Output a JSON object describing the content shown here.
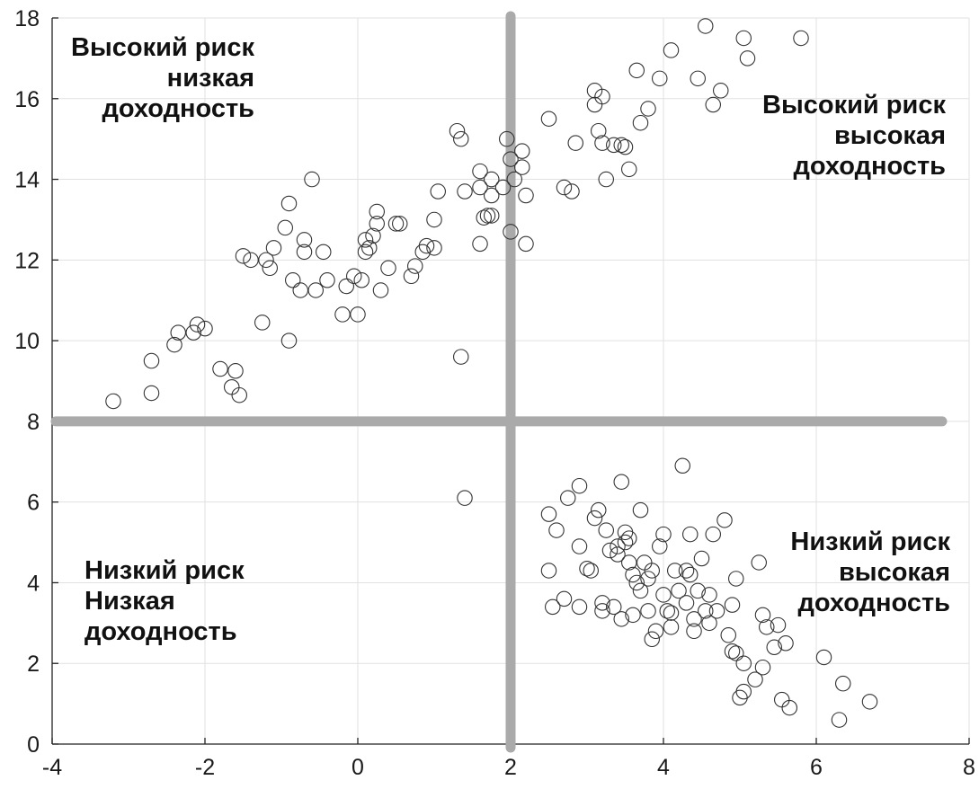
{
  "chart_data": {
    "type": "scatter",
    "title": "",
    "xlabel": "",
    "ylabel": "",
    "xlim": [
      -4,
      8
    ],
    "ylim": [
      0,
      18
    ],
    "x_ticks": [
      "-4",
      "-2",
      "0",
      "2",
      "4",
      "6",
      "8"
    ],
    "y_ticks": [
      "0",
      "2",
      "4",
      "6",
      "8",
      "10",
      "12",
      "14",
      "16",
      "18"
    ],
    "grid": true,
    "marker": "open-circle",
    "divider_x": 2,
    "divider_y": 8,
    "quadrant_labels": [
      {
        "id": "top-left",
        "lines": [
          "Высокий риск",
          "низкая",
          "доходность"
        ],
        "align": "right"
      },
      {
        "id": "top-right",
        "lines": [
          "Высокий риск",
          "высокая",
          "доходность"
        ],
        "align": "right"
      },
      {
        "id": "bottom-left",
        "lines": [
          "Низкий риск",
          "Низкая",
          "доходность"
        ],
        "align": "left"
      },
      {
        "id": "bottom-right",
        "lines": [
          "Низкий риск",
          "высокая",
          "доходность"
        ],
        "align": "right"
      }
    ],
    "series": [
      {
        "points": [
          [
            -3.2,
            8.5
          ],
          [
            -2.7,
            8.7
          ],
          [
            -2.7,
            9.5
          ],
          [
            -2.4,
            9.9
          ],
          [
            -2.35,
            10.2
          ],
          [
            -2.15,
            10.2
          ],
          [
            -2.1,
            10.4
          ],
          [
            -2.0,
            10.3
          ],
          [
            -1.8,
            9.3
          ],
          [
            -1.65,
            8.85
          ],
          [
            -1.6,
            9.25
          ],
          [
            -1.55,
            8.65
          ],
          [
            -1.25,
            10.45
          ],
          [
            -1.5,
            12.1
          ],
          [
            -1.4,
            12.0
          ],
          [
            -1.2,
            12.0
          ],
          [
            -1.15,
            11.8
          ],
          [
            -1.1,
            12.3
          ],
          [
            -0.95,
            12.8
          ],
          [
            -0.9,
            13.4
          ],
          [
            -0.9,
            10.0
          ],
          [
            -0.85,
            11.5
          ],
          [
            -0.75,
            11.25
          ],
          [
            -0.7,
            12.2
          ],
          [
            -0.7,
            12.5
          ],
          [
            -0.6,
            14.0
          ],
          [
            -0.55,
            11.25
          ],
          [
            -0.45,
            12.2
          ],
          [
            -0.4,
            11.5
          ],
          [
            -0.2,
            10.65
          ],
          [
            -0.15,
            11.35
          ],
          [
            -0.05,
            11.6
          ],
          [
            0.0,
            10.65
          ],
          [
            0.05,
            11.5
          ],
          [
            0.1,
            12.2
          ],
          [
            0.1,
            12.5
          ],
          [
            0.15,
            12.3
          ],
          [
            0.2,
            12.6
          ],
          [
            0.25,
            12.9
          ],
          [
            0.25,
            13.2
          ],
          [
            0.3,
            11.25
          ],
          [
            0.4,
            11.8
          ],
          [
            0.5,
            12.9
          ],
          [
            0.55,
            12.9
          ],
          [
            0.7,
            11.6
          ],
          [
            0.75,
            11.85
          ],
          [
            0.85,
            12.2
          ],
          [
            0.9,
            12.35
          ],
          [
            1.0,
            12.3
          ],
          [
            1.0,
            13.0
          ],
          [
            1.05,
            13.7
          ],
          [
            1.3,
            15.2
          ],
          [
            1.35,
            15.0
          ],
          [
            1.4,
            13.7
          ],
          [
            1.35,
            9.6
          ],
          [
            1.6,
            13.8
          ],
          [
            1.6,
            14.2
          ],
          [
            1.6,
            12.4
          ],
          [
            1.65,
            13.05
          ],
          [
            1.7,
            13.1
          ],
          [
            1.75,
            13.6
          ],
          [
            1.75,
            14.0
          ],
          [
            1.75,
            13.1
          ],
          [
            1.9,
            13.8
          ],
          [
            1.95,
            15.0
          ],
          [
            2.0,
            14.5
          ],
          [
            2.0,
            12.7
          ],
          [
            2.05,
            14.0
          ],
          [
            2.15,
            14.3
          ],
          [
            2.15,
            14.7
          ],
          [
            2.2,
            13.6
          ],
          [
            2.2,
            12.4
          ],
          [
            1.4,
            6.1
          ],
          [
            2.5,
            15.5
          ],
          [
            2.7,
            13.8
          ],
          [
            2.8,
            13.7
          ],
          [
            2.85,
            14.9
          ],
          [
            3.1,
            16.2
          ],
          [
            3.1,
            15.85
          ],
          [
            3.15,
            15.2
          ],
          [
            3.2,
            14.9
          ],
          [
            3.2,
            16.05
          ],
          [
            3.25,
            14.0
          ],
          [
            3.35,
            14.85
          ],
          [
            3.45,
            14.85
          ],
          [
            3.5,
            14.8
          ],
          [
            3.55,
            14.25
          ],
          [
            3.65,
            16.7
          ],
          [
            3.7,
            15.4
          ],
          [
            3.8,
            15.75
          ],
          [
            3.95,
            16.5
          ],
          [
            4.1,
            17.2
          ],
          [
            4.45,
            16.5
          ],
          [
            4.55,
            17.8
          ],
          [
            4.65,
            15.85
          ],
          [
            4.75,
            16.2
          ],
          [
            5.05,
            17.5
          ],
          [
            5.1,
            17.0
          ],
          [
            5.8,
            17.5
          ],
          [
            2.5,
            5.7
          ],
          [
            2.5,
            4.3
          ],
          [
            2.55,
            3.4
          ],
          [
            2.6,
            5.3
          ],
          [
            2.7,
            3.6
          ],
          [
            2.75,
            6.1
          ],
          [
            2.9,
            3.4
          ],
          [
            2.9,
            4.9
          ],
          [
            2.9,
            6.4
          ],
          [
            3.0,
            4.35
          ],
          [
            3.05,
            4.3
          ],
          [
            3.1,
            5.6
          ],
          [
            3.15,
            5.8
          ],
          [
            3.2,
            3.5
          ],
          [
            3.2,
            3.3
          ],
          [
            3.25,
            5.3
          ],
          [
            3.3,
            4.8
          ],
          [
            3.35,
            3.4
          ],
          [
            3.4,
            4.7
          ],
          [
            3.4,
            4.9
          ],
          [
            3.45,
            6.5
          ],
          [
            3.5,
            5.0
          ],
          [
            3.5,
            5.25
          ],
          [
            3.55,
            5.1
          ],
          [
            3.55,
            4.5
          ],
          [
            3.45,
            3.1
          ],
          [
            3.6,
            3.2
          ],
          [
            3.6,
            4.2
          ],
          [
            3.65,
            4.0
          ],
          [
            3.7,
            5.8
          ],
          [
            3.7,
            3.8
          ],
          [
            3.75,
            4.5
          ],
          [
            3.8,
            4.1
          ],
          [
            3.8,
            3.3
          ],
          [
            3.85,
            2.6
          ],
          [
            3.85,
            4.3
          ],
          [
            3.9,
            2.8
          ],
          [
            3.95,
            4.9
          ],
          [
            4.0,
            5.2
          ],
          [
            4.0,
            3.7
          ],
          [
            4.05,
            3.3
          ],
          [
            4.1,
            3.25
          ],
          [
            4.1,
            2.9
          ],
          [
            4.15,
            4.3
          ],
          [
            4.2,
            3.8
          ],
          [
            4.25,
            6.9
          ],
          [
            4.3,
            4.3
          ],
          [
            4.3,
            3.5
          ],
          [
            4.35,
            5.2
          ],
          [
            4.35,
            4.2
          ],
          [
            4.4,
            2.8
          ],
          [
            4.4,
            3.1
          ],
          [
            4.45,
            3.8
          ],
          [
            4.5,
            4.6
          ],
          [
            4.55,
            3.3
          ],
          [
            4.6,
            3.0
          ],
          [
            4.6,
            3.7
          ],
          [
            4.65,
            5.2
          ],
          [
            4.7,
            3.3
          ],
          [
            4.8,
            5.55
          ],
          [
            4.85,
            2.7
          ],
          [
            4.9,
            3.45
          ],
          [
            4.9,
            2.3
          ],
          [
            4.95,
            4.1
          ],
          [
            5.0,
            1.15
          ],
          [
            5.05,
            1.3
          ],
          [
            5.05,
            2.0
          ],
          [
            5.25,
            4.5
          ],
          [
            5.3,
            3.2
          ],
          [
            5.3,
            1.9
          ],
          [
            5.35,
            2.9
          ],
          [
            5.45,
            2.4
          ],
          [
            5.5,
            2.95
          ],
          [
            5.55,
            1.1
          ],
          [
            5.6,
            2.5
          ],
          [
            5.65,
            0.9
          ],
          [
            6.1,
            2.15
          ],
          [
            6.3,
            0.6
          ],
          [
            6.35,
            1.5
          ],
          [
            6.7,
            1.05
          ],
          [
            5.2,
            1.6
          ],
          [
            4.95,
            2.25
          ]
        ]
      }
    ]
  }
}
